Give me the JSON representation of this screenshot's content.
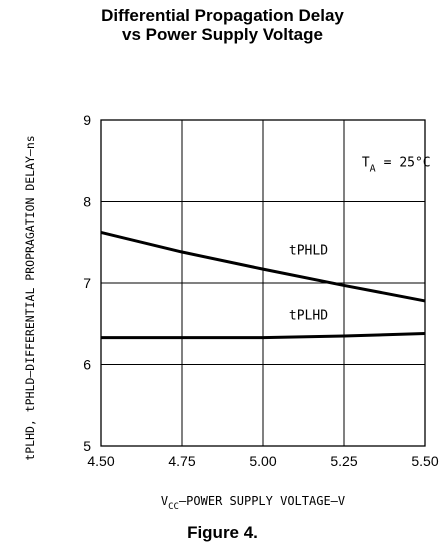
{
  "chart_data": {
    "type": "line",
    "title": "Differential Propagation Delay",
    "subtitle": "vs Power Supply Voltage",
    "ylabel": "tPLHD, tPHLD–DIFFERENTIAL PROPRAGATION DELAY–ns",
    "xlabel_main": "V",
    "xlabel_sub": "CC",
    "xlabel_rest": "–POWER SUPPLY VOLTAGE–V",
    "xlim": [
      4.5,
      5.5
    ],
    "ylim": [
      5,
      9
    ],
    "x_ticks": [
      "4.50",
      "4.75",
      "5.00",
      "5.25",
      "5.50"
    ],
    "y_ticks": [
      "5",
      "6",
      "7",
      "8",
      "9"
    ],
    "grid": true,
    "annotation": {
      "main": "T",
      "sub": "A",
      "rest": "= 25°C"
    },
    "series": [
      {
        "name": "tPHLD",
        "x": [
          4.5,
          4.75,
          5.0,
          5.25,
          5.5
        ],
        "y": [
          7.62,
          7.38,
          7.17,
          6.97,
          6.78
        ]
      },
      {
        "name": "tPLHD",
        "x": [
          4.5,
          4.75,
          5.0,
          5.25,
          5.5
        ],
        "y": [
          6.33,
          6.33,
          6.33,
          6.35,
          6.38
        ]
      }
    ]
  },
  "caption": "Figure 4."
}
